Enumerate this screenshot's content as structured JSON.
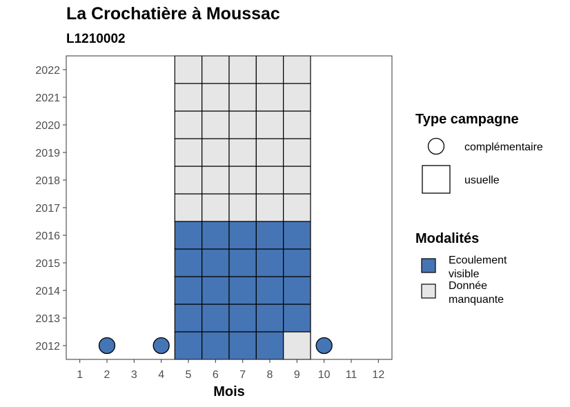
{
  "title": "La Crochatière à Moussac",
  "subtitle": "L1210002",
  "chart_data": {
    "type": "heatmap",
    "xlabel": "Mois",
    "ylabel": "",
    "x_ticks": [
      1,
      2,
      3,
      4,
      5,
      6,
      7,
      8,
      9,
      10,
      11,
      12
    ],
    "y_ticks": [
      2012,
      2013,
      2014,
      2015,
      2016,
      2017,
      2018,
      2019,
      2020,
      2021,
      2022
    ],
    "xlim": [
      0.5,
      12.5
    ],
    "ylim": [
      2011.5,
      2022.5
    ],
    "grid": false,
    "legend_placement": "right",
    "colors": {
      "Ecoulement visible": "#4575b4",
      "Donnée manquante": "#e6e6e6"
    },
    "legend": {
      "type_title": "Type campagne",
      "type_items": [
        {
          "label": "complémentaire",
          "shape": "circle"
        },
        {
          "label": "usuelle",
          "shape": "square"
        }
      ],
      "modalite_title": "Modalités",
      "modalite_items": [
        {
          "label_lines": [
            "Ecoulement",
            "visible"
          ],
          "color": "#4575b4"
        },
        {
          "label_lines": [
            "Donnée",
            "manquante"
          ],
          "color": "#e6e6e6"
        }
      ]
    },
    "cells": [
      {
        "month": 5,
        "year": 2012,
        "modalite": "Ecoulement visible",
        "type": "usuelle"
      },
      {
        "month": 6,
        "year": 2012,
        "modalite": "Ecoulement visible",
        "type": "usuelle"
      },
      {
        "month": 7,
        "year": 2012,
        "modalite": "Ecoulement visible",
        "type": "usuelle"
      },
      {
        "month": 8,
        "year": 2012,
        "modalite": "Ecoulement visible",
        "type": "usuelle"
      },
      {
        "month": 9,
        "year": 2012,
        "modalite": "Donnée manquante",
        "type": "usuelle"
      },
      {
        "month": 5,
        "year": 2013,
        "modalite": "Ecoulement visible",
        "type": "usuelle"
      },
      {
        "month": 6,
        "year": 2013,
        "modalite": "Ecoulement visible",
        "type": "usuelle"
      },
      {
        "month": 7,
        "year": 2013,
        "modalite": "Ecoulement visible",
        "type": "usuelle"
      },
      {
        "month": 8,
        "year": 2013,
        "modalite": "Ecoulement visible",
        "type": "usuelle"
      },
      {
        "month": 9,
        "year": 2013,
        "modalite": "Ecoulement visible",
        "type": "usuelle"
      },
      {
        "month": 5,
        "year": 2014,
        "modalite": "Ecoulement visible",
        "type": "usuelle"
      },
      {
        "month": 6,
        "year": 2014,
        "modalite": "Ecoulement visible",
        "type": "usuelle"
      },
      {
        "month": 7,
        "year": 2014,
        "modalite": "Ecoulement visible",
        "type": "usuelle"
      },
      {
        "month": 8,
        "year": 2014,
        "modalite": "Ecoulement visible",
        "type": "usuelle"
      },
      {
        "month": 9,
        "year": 2014,
        "modalite": "Ecoulement visible",
        "type": "usuelle"
      },
      {
        "month": 5,
        "year": 2015,
        "modalite": "Ecoulement visible",
        "type": "usuelle"
      },
      {
        "month": 6,
        "year": 2015,
        "modalite": "Ecoulement visible",
        "type": "usuelle"
      },
      {
        "month": 7,
        "year": 2015,
        "modalite": "Ecoulement visible",
        "type": "usuelle"
      },
      {
        "month": 8,
        "year": 2015,
        "modalite": "Ecoulement visible",
        "type": "usuelle"
      },
      {
        "month": 9,
        "year": 2015,
        "modalite": "Ecoulement visible",
        "type": "usuelle"
      },
      {
        "month": 5,
        "year": 2016,
        "modalite": "Ecoulement visible",
        "type": "usuelle"
      },
      {
        "month": 6,
        "year": 2016,
        "modalite": "Ecoulement visible",
        "type": "usuelle"
      },
      {
        "month": 7,
        "year": 2016,
        "modalite": "Ecoulement visible",
        "type": "usuelle"
      },
      {
        "month": 8,
        "year": 2016,
        "modalite": "Ecoulement visible",
        "type": "usuelle"
      },
      {
        "month": 9,
        "year": 2016,
        "modalite": "Ecoulement visible",
        "type": "usuelle"
      },
      {
        "month": 5,
        "year": 2017,
        "modalite": "Donnée manquante",
        "type": "usuelle"
      },
      {
        "month": 6,
        "year": 2017,
        "modalite": "Donnée manquante",
        "type": "usuelle"
      },
      {
        "month": 7,
        "year": 2017,
        "modalite": "Donnée manquante",
        "type": "usuelle"
      },
      {
        "month": 8,
        "year": 2017,
        "modalite": "Donnée manquante",
        "type": "usuelle"
      },
      {
        "month": 9,
        "year": 2017,
        "modalite": "Donnée manquante",
        "type": "usuelle"
      },
      {
        "month": 5,
        "year": 2018,
        "modalite": "Donnée manquante",
        "type": "usuelle"
      },
      {
        "month": 6,
        "year": 2018,
        "modalite": "Donnée manquante",
        "type": "usuelle"
      },
      {
        "month": 7,
        "year": 2018,
        "modalite": "Donnée manquante",
        "type": "usuelle"
      },
      {
        "month": 8,
        "year": 2018,
        "modalite": "Donnée manquante",
        "type": "usuelle"
      },
      {
        "month": 9,
        "year": 2018,
        "modalite": "Donnée manquante",
        "type": "usuelle"
      },
      {
        "month": 5,
        "year": 2019,
        "modalite": "Donnée manquante",
        "type": "usuelle"
      },
      {
        "month": 6,
        "year": 2019,
        "modalite": "Donnée manquante",
        "type": "usuelle"
      },
      {
        "month": 7,
        "year": 2019,
        "modalite": "Donnée manquante",
        "type": "usuelle"
      },
      {
        "month": 8,
        "year": 2019,
        "modalite": "Donnée manquante",
        "type": "usuelle"
      },
      {
        "month": 9,
        "year": 2019,
        "modalite": "Donnée manquante",
        "type": "usuelle"
      },
      {
        "month": 5,
        "year": 2020,
        "modalite": "Donnée manquante",
        "type": "usuelle"
      },
      {
        "month": 6,
        "year": 2020,
        "modalite": "Donnée manquante",
        "type": "usuelle"
      },
      {
        "month": 7,
        "year": 2020,
        "modalite": "Donnée manquante",
        "type": "usuelle"
      },
      {
        "month": 8,
        "year": 2020,
        "modalite": "Donnée manquante",
        "type": "usuelle"
      },
      {
        "month": 9,
        "year": 2020,
        "modalite": "Donnée manquante",
        "type": "usuelle"
      },
      {
        "month": 5,
        "year": 2021,
        "modalite": "Donnée manquante",
        "type": "usuelle"
      },
      {
        "month": 6,
        "year": 2021,
        "modalite": "Donnée manquante",
        "type": "usuelle"
      },
      {
        "month": 7,
        "year": 2021,
        "modalite": "Donnée manquante",
        "type": "usuelle"
      },
      {
        "month": 8,
        "year": 2021,
        "modalite": "Donnée manquante",
        "type": "usuelle"
      },
      {
        "month": 9,
        "year": 2021,
        "modalite": "Donnée manquante",
        "type": "usuelle"
      },
      {
        "month": 5,
        "year": 2022,
        "modalite": "Donnée manquante",
        "type": "usuelle"
      },
      {
        "month": 6,
        "year": 2022,
        "modalite": "Donnée manquante",
        "type": "usuelle"
      },
      {
        "month": 7,
        "year": 2022,
        "modalite": "Donnée manquante",
        "type": "usuelle"
      },
      {
        "month": 8,
        "year": 2022,
        "modalite": "Donnée manquante",
        "type": "usuelle"
      },
      {
        "month": 9,
        "year": 2022,
        "modalite": "Donnée manquante",
        "type": "usuelle"
      },
      {
        "month": 2,
        "year": 2012,
        "modalite": "Ecoulement visible",
        "type": "complémentaire"
      },
      {
        "month": 4,
        "year": 2012,
        "modalite": "Ecoulement visible",
        "type": "complémentaire"
      },
      {
        "month": 10,
        "year": 2012,
        "modalite": "Ecoulement visible",
        "type": "complémentaire"
      }
    ]
  }
}
